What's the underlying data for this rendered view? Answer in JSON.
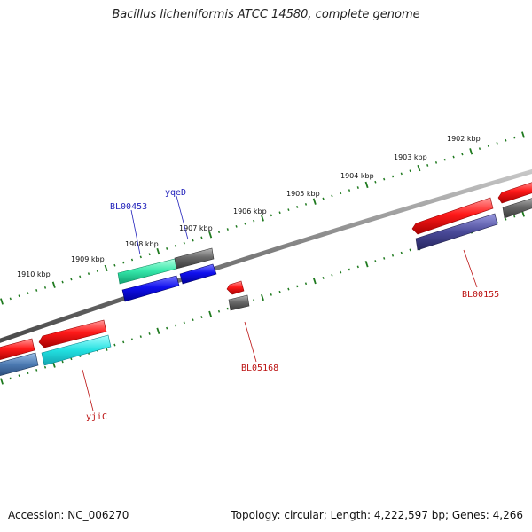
{
  "title": "Bacillus licheniformis ATCC 14580, complete genome",
  "footer": {
    "accession": "Accession: NC_006270",
    "summary": "Topology: circular; Length: 4,222,597 bp; Genes: 4,266"
  },
  "kbp_labels": [
    "1902 kbp",
    "1903 kbp",
    "1904 kbp",
    "1905 kbp",
    "1906 kbp",
    "1907 kbp",
    "1908 kbp",
    "1909 kbp",
    "1910 kbp"
  ],
  "gene_labels": [
    "BL00453",
    "yqeD",
    "BL00155",
    "BL05168",
    "yjiC"
  ],
  "colors": {
    "backbone": "#8a8a8a",
    "tick": "#1f7a1f",
    "red": "#ff1a1a",
    "gray": "#707070",
    "blue": "#1a1aee",
    "cyan": "#22e0e0",
    "teal": "#33e6a8",
    "steel": "#4a78b0",
    "slate": "#4a4a99",
    "label_blue": "#2222bb",
    "label_red": "#bb1111"
  }
}
